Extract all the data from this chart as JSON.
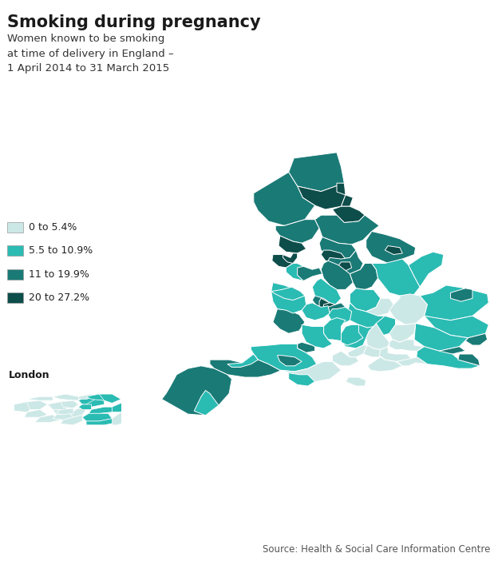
{
  "title": "Smoking during pregnancy",
  "subtitle": "Women known to be smoking\nat time of delivery in England –\n1 April 2014 to 31 March 2015",
  "source": "Source: Health & Social Care Information Centre",
  "legend_labels": [
    "0 to 5.4%",
    "5.5 to 10.9%",
    "11 to 19.9%",
    "20 to 27.2%"
  ],
  "legend_colors": [
    "#cce8e6",
    "#2abbb3",
    "#1a7a76",
    "#0d4d4a"
  ],
  "background_color": "#ffffff",
  "title_fontsize": 15,
  "subtitle_fontsize": 9.5,
  "source_fontsize": 8.5,
  "london_label": "London",
  "map_xlim": [
    -6.4,
    1.85
  ],
  "map_ylim": [
    49.85,
    55.95
  ],
  "london_xlim": [
    -0.52,
    0.35
  ],
  "london_ylim": [
    51.28,
    51.72
  ]
}
